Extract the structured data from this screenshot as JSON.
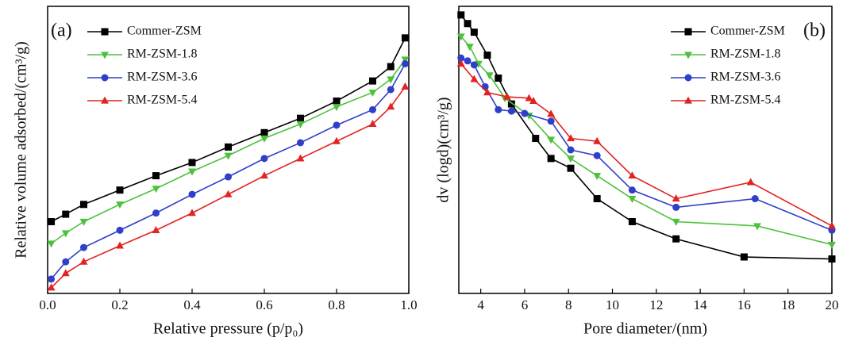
{
  "chart_data": [
    {
      "type": "line",
      "label": "(a)",
      "xlabel": "Relative pressure (p/p₀)",
      "ylabel": "Relative volume adsorbed/(cm³/g)",
      "xlim": [
        0,
        1
      ],
      "ylim": [
        0,
        100
      ],
      "xticks": [
        {
          "value": 0,
          "label": "0.0"
        },
        0.2,
        0.4,
        0.6,
        0.8,
        {
          "value": 1,
          "label": "1.0"
        }
      ],
      "legend": "top-left",
      "x": [
        0.01,
        0.05,
        0.1,
        0.2,
        0.3,
        0.4,
        0.5,
        0.6,
        0.7,
        0.8,
        0.9,
        0.95,
        0.99
      ],
      "series": [
        {
          "name": "Commer-ZSM",
          "color": "#000000",
          "marker": "square",
          "values": [
            25,
            27.6,
            31,
            36,
            41,
            45.6,
            51,
            56,
            61,
            67,
            74,
            79,
            89
          ]
        },
        {
          "name": "RM-ZSM-1.8",
          "color": "#4cc23c",
          "marker": "triangle-down",
          "values": [
            17.4,
            21,
            25,
            31,
            36.5,
            42.5,
            48,
            54,
            59,
            65,
            70,
            74.6,
            81.5
          ]
        },
        {
          "name": "RM-ZSM-3.6",
          "color": "#2f3fc8",
          "marker": "circle",
          "values": [
            5,
            11,
            16,
            22,
            28,
            34.5,
            40.6,
            47,
            52.5,
            58.6,
            64,
            71,
            80
          ]
        },
        {
          "name": "RM-ZSM-5.4",
          "color": "#e32222",
          "marker": "triangle-up",
          "values": [
            2,
            7,
            11,
            16.6,
            22,
            28,
            34.5,
            41,
            47,
            53,
            59,
            65,
            72
          ]
        }
      ]
    },
    {
      "type": "line",
      "label": "(b)",
      "xlabel": "Pore diameter/(nm)",
      "ylabel": "dv (logd)(cm³/g)",
      "xlim": [
        3,
        20
      ],
      "ylim": [
        0,
        100
      ],
      "xticks": [
        4,
        6,
        8,
        10,
        12,
        14,
        16,
        18,
        20
      ],
      "legend": "top-right",
      "series": [
        {
          "name": "Commer-ZSM",
          "color": "#000000",
          "marker": "square",
          "x": [
            3.1,
            3.4,
            3.7,
            4.3,
            4.8,
            5.4,
            6.5,
            7.2,
            8.1,
            9.3,
            10.9,
            12.9,
            16,
            20
          ],
          "values": [
            97,
            94,
            91,
            83,
            75,
            66,
            54,
            47,
            43.6,
            33,
            25,
            19,
            12.7,
            12
          ]
        },
        {
          "name": "RM-ZSM-1.8",
          "color": "#4cc23c",
          "marker": "triangle-down",
          "x": [
            3.1,
            3.5,
            3.9,
            4.4,
            5.1,
            6.2,
            7.2,
            8.1,
            9.3,
            10.9,
            12.9,
            16.6,
            20
          ],
          "values": [
            89.5,
            86,
            80,
            76,
            68,
            62,
            53.6,
            47,
            41,
            33,
            25,
            23.5,
            17
          ]
        },
        {
          "name": "RM-ZSM-3.6",
          "color": "#2f3fc8",
          "marker": "circle",
          "x": [
            3.1,
            3.4,
            3.7,
            4.2,
            4.8,
            5.4,
            6,
            7.2,
            8.1,
            9.3,
            10.9,
            12.9,
            16.5,
            20
          ],
          "values": [
            82,
            81,
            79.6,
            72,
            64,
            63.5,
            62.7,
            60,
            50,
            48,
            36,
            30,
            33,
            22
          ]
        },
        {
          "name": "RM-ZSM-5.4",
          "color": "#e32222",
          "marker": "triangle-up",
          "x": [
            3.1,
            3.7,
            4.3,
            5.2,
            6.2,
            6.4,
            7.2,
            8.1,
            9.3,
            10.9,
            12.9,
            16.3,
            20
          ],
          "values": [
            80,
            74.6,
            70,
            68.5,
            68,
            67,
            62.5,
            54,
            53,
            41,
            33,
            38.7,
            23.5
          ]
        }
      ]
    }
  ]
}
